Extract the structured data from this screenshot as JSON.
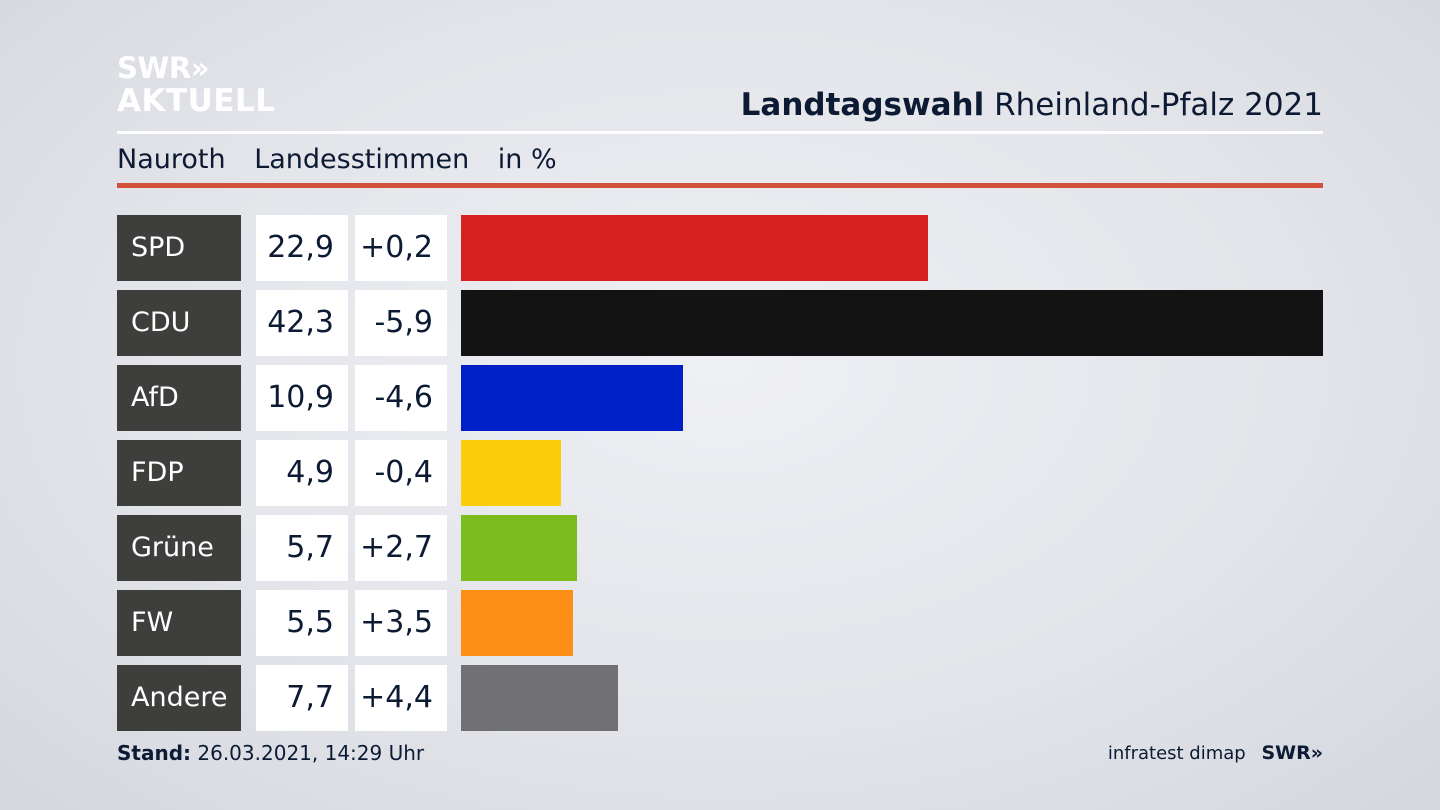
{
  "header": {
    "logo_line1": "SWR»",
    "logo_line2": "AKTUELL",
    "title_bold": "Landtagswahl",
    "title_rest": "Rheinland-Pfalz 2021",
    "place": "Nauroth",
    "measure": "Landesstimmen",
    "unit": "in %"
  },
  "colors": {
    "accent_rule": "#d3513b",
    "label_bg": "#3e3e3c"
  },
  "chart_data": {
    "type": "bar",
    "orientation": "horizontal",
    "categories": [
      "SPD",
      "CDU",
      "AfD",
      "FDP",
      "Grüne",
      "FW",
      "Andere"
    ],
    "values": [
      22.9,
      42.3,
      10.9,
      4.9,
      5.7,
      5.5,
      7.7
    ],
    "value_labels": [
      "22,9",
      "42,3",
      "10,9",
      "4,9",
      "5,7",
      "5,5",
      "7,7"
    ],
    "changes": [
      0.2,
      -5.9,
      -4.6,
      -0.4,
      2.7,
      3.5,
      4.4
    ],
    "change_labels": [
      "+0,2",
      "-5,9",
      "-4,6",
      "-0,4",
      "+2,7",
      "+3,5",
      "+4,4"
    ],
    "bar_colors": [
      "#d72020",
      "#131313",
      "#0021c8",
      "#fccd0a",
      "#7bbd1e",
      "#fd8e16",
      "#717174"
    ],
    "xlim": [
      0,
      42.3
    ],
    "grid": false,
    "legend": "none"
  },
  "footer": {
    "stand_label": "Stand:",
    "stand_value": "26.03.2021, 14:29 Uhr",
    "source": "infratest dimap",
    "brand": "SWR»"
  }
}
